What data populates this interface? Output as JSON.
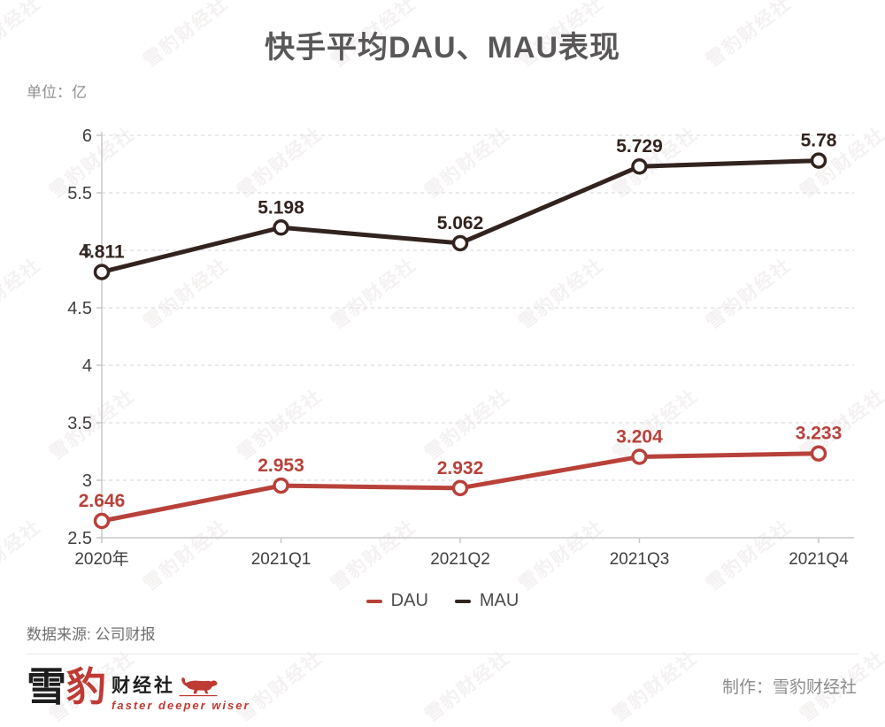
{
  "title": "快手平均DAU、MAU表现",
  "unit_label": "单位：亿",
  "source_label": "数据来源: 公司财报",
  "credit_label": "制作：雪豹财经社",
  "watermark_text": "雪豹财经社",
  "logo": {
    "char_snow": "雪",
    "char_leopard": "豹",
    "suffix": "财经社",
    "tagline": "faster deeper wiser"
  },
  "legend": [
    {
      "label": "DAU",
      "color": "#b8413a"
    },
    {
      "label": "MAU",
      "color": "#33231e"
    }
  ],
  "colors": {
    "dau": "#b8413a",
    "mau": "#33231e",
    "grid": "#e3e3e3",
    "axis": "#c8c8c8",
    "tick_label": "#3f3f3f",
    "title": "#595757",
    "leopard_red": "#bf3a33"
  },
  "chart_data": {
    "type": "line",
    "categories": [
      "2020年",
      "2021Q1",
      "2021Q2",
      "2021Q3",
      "2021Q4"
    ],
    "series": [
      {
        "name": "DAU",
        "color": "#b8413a",
        "values": [
          2.646,
          2.953,
          2.932,
          3.204,
          3.233
        ]
      },
      {
        "name": "MAU",
        "color": "#33231e",
        "values": [
          4.811,
          5.198,
          5.062,
          5.729,
          5.78
        ]
      }
    ],
    "title": "快手平均DAU、MAU表现",
    "xlabel": "",
    "ylabel": "单位：亿",
    "ylim": [
      2.5,
      6
    ],
    "yticks": [
      2.5,
      3,
      3.5,
      4,
      4.5,
      5,
      5.5,
      6
    ],
    "grid": "horizontal-dashed",
    "legend_position": "bottom",
    "point_style": "open-circle",
    "data_labels": true
  }
}
